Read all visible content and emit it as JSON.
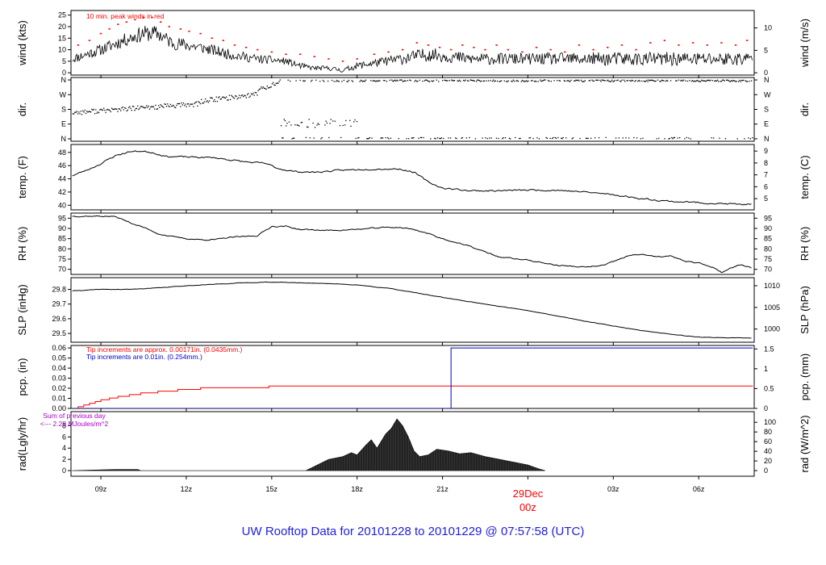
{
  "footer": {
    "title": "UW Rooftop Data for 20101228  to  20101229 @ 07:57:58  (UTC)"
  },
  "colors": {
    "axis": "#000000",
    "peak": "#ff0000",
    "precip_red": "#ff0000",
    "precip_blue": "#0000cc",
    "note_purple": "#aa00cc",
    "footer": "#2020e0",
    "date_label": "#ff0000"
  },
  "chart_data": {
    "type": "line",
    "x_axis": {
      "ticks": [
        "09z",
        "12z",
        "15z",
        "18z",
        "21z",
        "00z",
        "03z",
        "06z"
      ],
      "tick_hours": [
        9,
        12,
        15,
        18,
        21,
        24,
        27,
        30
      ],
      "range_hours": [
        7.95,
        31.95
      ],
      "date_label": "29Dec"
    },
    "panels": [
      {
        "id": "wind",
        "ylabel_left": "wind (kts)",
        "ylabel_right": "wind (m/s)",
        "ylim": [
          -1,
          27
        ],
        "left_ticks": [
          0,
          5,
          10,
          15,
          20,
          25
        ],
        "right_ticks": [
          "0",
          "5",
          "10"
        ],
        "right_tick_values": [
          0,
          9.72,
          19.44
        ],
        "annotation": "10 min. peak winds in red",
        "series": [
          {
            "name": "wind",
            "style": "noisy",
            "seed": 11,
            "x": [
              8.0,
              9.0,
              10.0,
              10.5,
              11.0,
              11.5,
              12.5,
              13.5,
              14.5,
              15.5,
              16.0,
              16.5,
              17.0,
              17.5,
              18.0,
              19.0,
              19.5,
              20.5,
              22.0,
              24.0,
              27.0,
              29.0,
              31.9
            ],
            "y": [
              6,
              10,
              15,
              17,
              17,
              13,
              11,
              8,
              6,
              5,
              3,
              2,
              2,
              1,
              3,
              5,
              6,
              8,
              6,
              6,
              6,
              6,
              6
            ],
            "amp": [
              2,
              2.5,
              3,
              3.5,
              3.5,
              3,
              2.5,
              2.2,
              2,
              1.5,
              1.3,
              1,
              1,
              1,
              1.5,
              2,
              2.5,
              3,
              2.5,
              2.5,
              3,
              3,
              3
            ]
          }
        ],
        "peaks": {
          "x": [
            8.2,
            8.6,
            9.0,
            9.3,
            9.6,
            9.9,
            10.2,
            10.5,
            10.8,
            11.1,
            11.4,
            11.8,
            12.1,
            12.5,
            12.9,
            13.3,
            13.7,
            14.1,
            14.5,
            15.0,
            15.5,
            16.0,
            16.5,
            17.0,
            17.5,
            18.0,
            18.6,
            19.1,
            19.6,
            20.1,
            20.5,
            20.9,
            21.3,
            21.7,
            22.1,
            22.5,
            22.9,
            23.3,
            23.8,
            24.3,
            24.8,
            25.3,
            25.8,
            26.3,
            26.8,
            27.3,
            27.8,
            28.3,
            28.8,
            29.3,
            29.8,
            30.3,
            30.8,
            31.3,
            31.7
          ],
          "y": [
            12,
            14,
            17,
            19,
            21,
            22,
            23,
            24,
            24,
            22,
            20,
            19,
            18,
            17,
            15,
            14,
            12,
            11,
            10,
            9,
            8,
            8,
            7,
            6,
            5,
            6,
            8,
            9,
            10,
            13,
            12,
            11,
            10,
            12,
            11,
            10,
            12,
            10,
            9,
            11,
            10,
            9,
            12,
            10,
            11,
            12,
            10,
            13,
            14,
            12,
            13,
            12,
            13,
            12,
            14
          ]
        }
      },
      {
        "id": "dir",
        "ylabel_left": "dir.",
        "ylabel_right": "dir.",
        "ylim": [
          -15,
          375
        ],
        "left_ticks": [
          "N",
          "E",
          "S",
          "W",
          "N"
        ],
        "left_tick_values": [
          0,
          90,
          180,
          270,
          360
        ],
        "right_ticks": [
          "N",
          "E",
          "S",
          "W",
          "N"
        ],
        "right_tick_values": [
          0,
          90,
          180,
          270,
          360
        ],
        "style": "scatter"
      },
      {
        "id": "temp",
        "ylabel_left": "temp. (F)",
        "ylabel_right": "temp. (C)",
        "ylim": [
          39.3,
          49.2
        ],
        "left_ticks": [
          40,
          42,
          44,
          46,
          48
        ],
        "right_ticks": [
          "5",
          "6",
          "7",
          "8",
          "9"
        ],
        "right_tick_values": [
          41,
          42.8,
          44.6,
          46.4,
          48.2
        ],
        "series": [
          {
            "name": "temp",
            "style": "smooth",
            "seed": 23,
            "x": [
              8.0,
              8.5,
              9.0,
              9.5,
              10.0,
              10.4,
              10.8,
              11.3,
              12.0,
              13.0,
              14.0,
              14.8,
              15.2,
              15.8,
              16.5,
              17.5,
              18.5,
              19.5,
              20.0,
              20.5,
              21.0,
              22.0,
              23.0,
              24.0,
              25.0,
              26.0,
              27.0,
              28.0,
              29.0,
              30.0,
              31.0,
              31.9
            ],
            "y": [
              44.5,
              45.3,
              46.3,
              47.5,
              48.1,
              48.2,
              48.0,
              47.4,
              47.3,
              47.2,
              46.6,
              46.3,
              45.6,
              45.1,
              45.0,
              45.3,
              45.5,
              45.5,
              45.0,
              43.5,
              42.6,
              42.2,
              42.2,
              42.3,
              42.3,
              42.0,
              41.6,
              41.0,
              40.6,
              40.4,
              40.2,
              40.1
            ],
            "amp": 0.25
          }
        ]
      },
      {
        "id": "rh",
        "ylabel_left": "RH (%)",
        "ylabel_right": "RH (%)",
        "ylim": [
          67.5,
          97.5
        ],
        "left_ticks": [
          70,
          75,
          80,
          85,
          90,
          95
        ],
        "right_ticks": [
          "70",
          "75",
          "80",
          "85",
          "90",
          "95"
        ],
        "right_tick_values": [
          70,
          75,
          80,
          85,
          90,
          95
        ],
        "series": [
          {
            "name": "rh",
            "style": "smooth",
            "seed": 37,
            "x": [
              8.0,
              9.0,
              9.5,
              10.0,
              10.5,
              11.0,
              11.5,
              12.0,
              12.5,
              13.0,
              13.5,
              14.0,
              14.5,
              15.0,
              15.5,
              16.0,
              17.0,
              18.0,
              19.0,
              19.5,
              20.0,
              20.5,
              21.0,
              22.0,
              23.0,
              24.0,
              25.0,
              26.0,
              26.7,
              27.5,
              28.0,
              28.5,
              29.0,
              29.5,
              30.0,
              30.5,
              30.8,
              31.0,
              31.5,
              31.9
            ],
            "y": [
              96.0,
              96.0,
              95.8,
              93.0,
              90.5,
              87.5,
              86.0,
              85.0,
              84.5,
              84.5,
              85.5,
              86.0,
              86.5,
              91.0,
              91.0,
              89.5,
              89.0,
              89.5,
              90.5,
              90.5,
              89.5,
              87.5,
              85.0,
              81.0,
              76.0,
              74.5,
              72.0,
              71.0,
              72.0,
              76.5,
              77.5,
              76.0,
              76.5,
              74.0,
              73.0,
              71.0,
              68.5,
              70.0,
              72.5,
              70.5
            ],
            "amp": 0.6
          }
        ]
      },
      {
        "id": "slp",
        "ylabel_left": "SLP (inHg)",
        "ylabel_right": "SLP (hPa)",
        "ylim": [
          29.44,
          29.88
        ],
        "left_ticks": [
          "29.5",
          "29.6",
          "29.7",
          "29.8"
        ],
        "left_tick_values": [
          29.5,
          29.6,
          29.7,
          29.8
        ],
        "right_ticks": [
          "1000",
          "1005",
          "1010"
        ],
        "right_tick_values": [
          29.53,
          29.677,
          29.825
        ],
        "series": [
          {
            "name": "slp",
            "style": "smooth",
            "seed": 41,
            "x": [
              8.0,
              9.0,
              10.0,
              11.0,
              12.0,
              13.0,
              14.0,
              15.0,
              16.0,
              17.0,
              18.0,
              19.0,
              20.0,
              21.0,
              22.0,
              23.0,
              24.0,
              25.0,
              26.0,
              27.0,
              28.0,
              29.0,
              30.0,
              31.0,
              31.9
            ],
            "y": [
              29.79,
              29.8,
              29.8,
              29.81,
              29.825,
              29.835,
              29.845,
              29.85,
              29.845,
              29.84,
              29.83,
              29.81,
              29.78,
              29.745,
              29.715,
              29.685,
              29.655,
              29.62,
              29.585,
              29.55,
              29.52,
              29.495,
              29.475,
              29.47,
              29.468
            ],
            "amp": 0.003
          }
        ]
      },
      {
        "id": "pcp",
        "ylabel_left": "pcp. (in)",
        "ylabel_right": "pcp. (mm)",
        "ylim": [
          0,
          0.0625
        ],
        "left_ticks": [
          "0.00",
          "0.01",
          "0.02",
          "0.03",
          "0.04",
          "0.05",
          "0.06"
        ],
        "left_tick_values": [
          0,
          0.01,
          0.02,
          0.03,
          0.04,
          0.05,
          0.06
        ],
        "right_ticks": [
          "0",
          "0.5",
          "1",
          "1.5"
        ],
        "right_tick_values": [
          0,
          0.01969,
          0.03937,
          0.05906
        ],
        "annotations": [
          "Tip increments are approx. 0.00171in. (0.0435mm.)",
          "Tip increments are 0.01in. (0.254mm.)"
        ],
        "series": [
          {
            "name": "red_gauge",
            "style": "step",
            "x": [
              8.05,
              8.2,
              8.4,
              8.6,
              8.8,
              9.0,
              9.3,
              9.6,
              10.0,
              10.4,
              11.0,
              11.7,
              12.5,
              13.3,
              14.9,
              31.9
            ],
            "y": [
              0.0,
              0.0017,
              0.0034,
              0.0051,
              0.0068,
              0.0086,
              0.0103,
              0.012,
              0.0137,
              0.0154,
              0.0171,
              0.0188,
              0.0205,
              0.0205,
              0.0222,
              0.0222
            ]
          },
          {
            "name": "blue_gauge",
            "style": "step",
            "x": [
              8.0,
              21.3,
              21.3,
              31.9
            ],
            "y": [
              0.0,
              0.0,
              0.06,
              0.06
            ]
          }
        ]
      },
      {
        "id": "rad",
        "ylabel_left": "rad(Lgly/hr)",
        "ylabel_right": "rad (W/m^2)",
        "ylim": [
          -1,
          10.5
        ],
        "left_ticks": [
          0,
          2,
          4,
          6,
          8
        ],
        "right_ticks": [
          "0",
          "20",
          "40",
          "60",
          "80",
          "100"
        ],
        "right_tick_values": [
          0,
          1.72,
          3.44,
          5.16,
          6.88,
          8.6
        ],
        "annotations": [
          "Sum of previous day",
          "<--- 2.28 MJoules/m^2"
        ],
        "series": [
          {
            "name": "rad",
            "style": "area",
            "x": [
              8.0,
              9.5,
              10.3,
              10.4,
              16.2,
              16.4,
              16.8,
              17.0,
              17.5,
              17.8,
              18.0,
              18.3,
              18.5,
              18.7,
              19.0,
              19.2,
              19.4,
              19.6,
              19.8,
              20.0,
              20.2,
              20.5,
              20.8,
              21.2,
              21.6,
              22.0,
              22.5,
              23.0,
              23.5,
              24.0,
              24.4,
              24.6
            ],
            "y": [
              0.0,
              0.2,
              0.2,
              0.0,
              0.0,
              0.5,
              1.5,
              2.0,
              2.5,
              3.2,
              2.8,
              4.5,
              5.5,
              4.0,
              6.5,
              7.5,
              9.2,
              8.0,
              6.0,
              3.5,
              2.5,
              2.8,
              3.8,
              3.5,
              3.0,
              3.2,
              2.5,
              2.0,
              1.5,
              1.0,
              0.3,
              0.0
            ]
          }
        ]
      }
    ]
  }
}
